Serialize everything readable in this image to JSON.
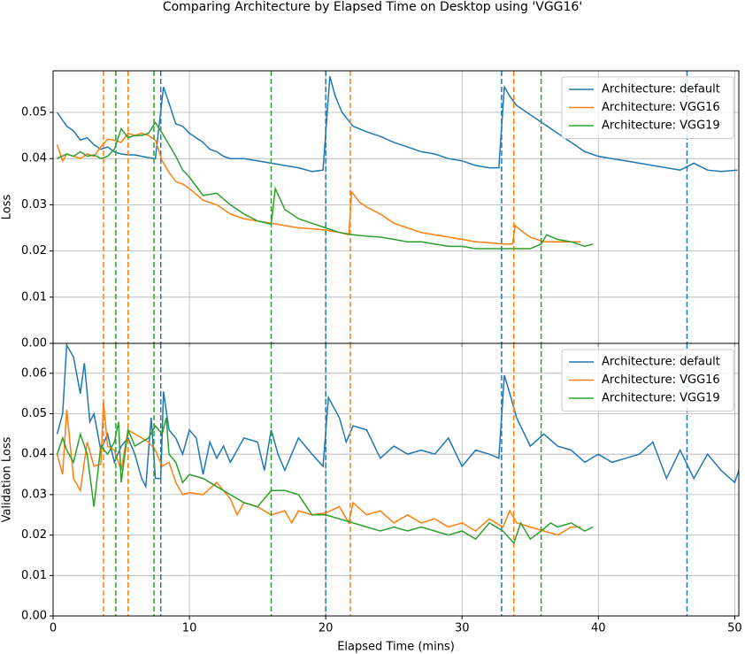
{
  "chart_data": [
    {
      "type": "line",
      "title": "Comparing Architecture by Elapsed Time on Desktop using 'VGG16'",
      "ylabel": "Loss",
      "xlim": [
        0,
        50.3
      ],
      "xticks": [
        0,
        10,
        20,
        30,
        40,
        50
      ],
      "show_xticklabels": false,
      "ylim": [
        0,
        0.059
      ],
      "yticks": [
        {
          "value": 0,
          "label": "0.00"
        },
        {
          "value": 0.01,
          "label": "0.01"
        },
        {
          "value": 0.02,
          "label": "0.02"
        },
        {
          "value": 0.03,
          "label": "0.03"
        },
        {
          "value": 0.04,
          "label": "0.04"
        },
        {
          "value": 0.05,
          "label": "0.05"
        }
      ],
      "grid": true,
      "legend": "upper right",
      "series": [
        {
          "name": "Architecture: default",
          "color": "#1f77b4",
          "vlines": [
            7.9,
            20.0,
            32.9,
            46.5
          ],
          "x": [
            0.3,
            1,
            1.5,
            2,
            2.5,
            3,
            3.5,
            4,
            4.5,
            5,
            5.5,
            6,
            6.5,
            7,
            7.5,
            8.1,
            8.5,
            9,
            9.5,
            10,
            10.5,
            11,
            11.5,
            12,
            12.5,
            13,
            14,
            15,
            16,
            17,
            18,
            19,
            19.8,
            20.3,
            20.7,
            21.2,
            22,
            23,
            24,
            25,
            26,
            27,
            28,
            29,
            30,
            31,
            32,
            32.7,
            33.1,
            33.5,
            34,
            35,
            36,
            37,
            38,
            39,
            40,
            41,
            42,
            43,
            44,
            45,
            46,
            47,
            48,
            49,
            50.2
          ],
          "values": [
            0.05,
            0.047,
            0.046,
            0.044,
            0.0445,
            0.043,
            0.042,
            0.0425,
            0.0415,
            0.041,
            0.0408,
            0.0408,
            0.0405,
            0.0402,
            0.04,
            0.0555,
            0.052,
            0.0475,
            0.047,
            0.0455,
            0.0445,
            0.0435,
            0.042,
            0.0415,
            0.0405,
            0.04,
            0.04,
            0.0395,
            0.039,
            0.0385,
            0.038,
            0.0372,
            0.0375,
            0.0578,
            0.0535,
            0.05,
            0.047,
            0.0458,
            0.0448,
            0.0435,
            0.0425,
            0.0415,
            0.041,
            0.04,
            0.0395,
            0.0385,
            0.038,
            0.038,
            0.0555,
            0.0535,
            0.0515,
            0.0495,
            0.0475,
            0.0455,
            0.0435,
            0.0415,
            0.0405,
            0.04,
            0.0395,
            0.039,
            0.0385,
            0.038,
            0.0375,
            0.039,
            0.0375,
            0.0372,
            0.0375
          ]
        },
        {
          "name": "Architecture: VGG16",
          "color": "#ff7f0e",
          "vlines": [
            3.7,
            5.5,
            21.8,
            33.8
          ],
          "x": [
            0.3,
            0.7,
            1,
            1.5,
            2,
            2.5,
            3,
            3.5,
            4,
            4.5,
            5,
            5.5,
            6,
            6.5,
            7,
            7.5,
            8,
            8.5,
            9,
            9.5,
            10,
            11,
            12,
            13,
            14,
            15,
            16,
            17,
            18,
            19,
            20,
            21,
            21.7,
            21.9,
            22.5,
            23,
            24,
            25,
            26,
            27,
            28,
            29,
            30,
            31,
            32,
            33,
            33.7,
            33.9,
            34.5,
            35,
            36,
            37,
            38,
            38.7
          ],
          "values": [
            0.043,
            0.0395,
            0.041,
            0.0405,
            0.04,
            0.041,
            0.0405,
            0.0425,
            0.0442,
            0.044,
            0.0435,
            0.0455,
            0.045,
            0.0455,
            0.045,
            0.044,
            0.0395,
            0.037,
            0.035,
            0.0345,
            0.0335,
            0.031,
            0.03,
            0.028,
            0.027,
            0.0265,
            0.026,
            0.0255,
            0.025,
            0.0248,
            0.0245,
            0.024,
            0.0235,
            0.0328,
            0.0305,
            0.0295,
            0.028,
            0.026,
            0.025,
            0.024,
            0.0235,
            0.023,
            0.0225,
            0.022,
            0.0218,
            0.0215,
            0.0215,
            0.0255,
            0.024,
            0.023,
            0.022,
            0.022,
            0.022,
            0.022
          ]
        },
        {
          "name": "Architecture: VGG19",
          "color": "#2ca02c",
          "vlines": [
            4.6,
            7.4,
            16.0,
            35.8
          ],
          "x": [
            0.3,
            1,
            1.5,
            2,
            2.5,
            3,
            3.5,
            4,
            4.5,
            5,
            5.5,
            6,
            6.5,
            7,
            7.5,
            8,
            8.5,
            9,
            9.5,
            10,
            10.5,
            11,
            12,
            13,
            14,
            15,
            16,
            16.3,
            17,
            18,
            19,
            20,
            21,
            22,
            23,
            24,
            25,
            26,
            27,
            28,
            29,
            30,
            31,
            32,
            33,
            34,
            35,
            35.8,
            36.2,
            37,
            38,
            39,
            39.6
          ],
          "values": [
            0.04,
            0.041,
            0.0405,
            0.0415,
            0.0405,
            0.0408,
            0.04,
            0.0405,
            0.042,
            0.0465,
            0.0445,
            0.045,
            0.045,
            0.0455,
            0.0478,
            0.0455,
            0.043,
            0.0405,
            0.0375,
            0.036,
            0.034,
            0.032,
            0.0325,
            0.03,
            0.028,
            0.0265,
            0.0258,
            0.0335,
            0.029,
            0.027,
            0.026,
            0.025,
            0.024,
            0.0235,
            0.0232,
            0.023,
            0.0225,
            0.022,
            0.022,
            0.0215,
            0.021,
            0.021,
            0.0205,
            0.0205,
            0.0205,
            0.0205,
            0.0205,
            0.0215,
            0.0235,
            0.0225,
            0.022,
            0.021,
            0.0215
          ]
        }
      ]
    },
    {
      "type": "line",
      "xlabel": "Elapsed Time (mins)",
      "ylabel": "Validation Loss",
      "xlim": [
        0,
        50.3
      ],
      "xticks": [
        0,
        10,
        20,
        30,
        40,
        50
      ],
      "show_xticklabels": true,
      "ylim": [
        0,
        0.0674
      ],
      "yticks": [
        {
          "value": 0,
          "label": "0.00"
        },
        {
          "value": 0.01,
          "label": "0.01"
        },
        {
          "value": 0.02,
          "label": "0.02"
        },
        {
          "value": 0.03,
          "label": "0.03"
        },
        {
          "value": 0.04,
          "label": "0.04"
        },
        {
          "value": 0.05,
          "label": "0.05"
        },
        {
          "value": 0.06,
          "label": "0.06"
        }
      ],
      "grid": true,
      "legend": "upper right",
      "series": [
        {
          "name": "Architecture: default",
          "color": "#1f77b4",
          "vlines": [
            7.9,
            20.0,
            32.9,
            46.5
          ],
          "x": [
            0.3,
            0.7,
            1,
            1.5,
            2,
            2.3,
            2.7,
            3,
            3.5,
            4,
            4.5,
            5,
            5.5,
            6,
            6.5,
            6.8,
            7.2,
            7.5,
            7.9,
            8.1,
            8.5,
            9,
            9.5,
            10,
            10.5,
            11,
            11.5,
            12,
            12.5,
            13,
            14,
            15,
            15.5,
            16,
            16.5,
            17,
            18,
            19,
            19.8,
            20.2,
            21,
            21.5,
            22,
            23,
            24,
            25,
            26,
            27,
            28,
            29,
            30,
            31,
            32,
            32.7,
            33.1,
            33.5,
            34,
            35,
            36,
            37,
            38,
            39,
            40,
            41,
            42,
            43,
            44,
            45,
            46,
            47,
            48,
            49,
            50,
            50.3
          ],
          "values": [
            0.045,
            0.05,
            0.067,
            0.064,
            0.055,
            0.0625,
            0.048,
            0.05,
            0.041,
            0.045,
            0.038,
            0.042,
            0.044,
            0.04,
            0.034,
            0.032,
            0.049,
            0.034,
            0.034,
            0.0555,
            0.046,
            0.044,
            0.04,
            0.046,
            0.044,
            0.035,
            0.043,
            0.039,
            0.042,
            0.038,
            0.044,
            0.043,
            0.036,
            0.046,
            0.04,
            0.036,
            0.044,
            0.04,
            0.037,
            0.054,
            0.049,
            0.043,
            0.047,
            0.046,
            0.039,
            0.042,
            0.04,
            0.041,
            0.04,
            0.044,
            0.037,
            0.041,
            0.04,
            0.039,
            0.0595,
            0.055,
            0.049,
            0.042,
            0.045,
            0.042,
            0.041,
            0.038,
            0.04,
            0.038,
            0.039,
            0.04,
            0.043,
            0.034,
            0.041,
            0.034,
            0.04,
            0.036,
            0.033,
            0.036
          ]
        },
        {
          "name": "Architecture: VGG16",
          "color": "#ff7f0e",
          "vlines": [
            3.7,
            5.5,
            21.8,
            33.8
          ],
          "x": [
            0.3,
            0.7,
            1,
            1.5,
            2,
            2.5,
            3,
            3.5,
            3.7,
            4,
            4.5,
            5,
            5.5,
            6,
            6.5,
            7,
            7.5,
            8,
            8.5,
            9,
            9.5,
            10,
            11,
            12,
            13,
            13.5,
            14,
            15,
            16,
            17,
            17.5,
            18,
            19,
            20,
            21,
            21.7,
            22,
            23,
            24,
            25,
            26,
            27,
            28,
            29,
            30,
            31,
            32,
            33,
            33.5,
            34,
            35,
            36,
            37,
            38,
            38.7
          ],
          "values": [
            0.04,
            0.035,
            0.051,
            0.034,
            0.031,
            0.043,
            0.037,
            0.0375,
            0.053,
            0.042,
            0.041,
            0.036,
            0.046,
            0.045,
            0.044,
            0.043,
            0.041,
            0.037,
            0.038,
            0.033,
            0.03,
            0.0305,
            0.03,
            0.033,
            0.029,
            0.025,
            0.028,
            0.027,
            0.025,
            0.026,
            0.023,
            0.026,
            0.025,
            0.0255,
            0.027,
            0.023,
            0.028,
            0.025,
            0.026,
            0.023,
            0.025,
            0.023,
            0.024,
            0.022,
            0.023,
            0.021,
            0.024,
            0.022,
            0.026,
            0.023,
            0.022,
            0.021,
            0.02,
            0.022,
            0.022
          ]
        },
        {
          "name": "Architecture: VGG19",
          "color": "#2ca02c",
          "vlines": [
            4.6,
            7.4,
            16.0,
            35.8
          ],
          "x": [
            0.3,
            0.7,
            1,
            1.5,
            2,
            2.5,
            3,
            3.5,
            4,
            4.5,
            4.8,
            5,
            5.5,
            6,
            6.5,
            7,
            7.5,
            8,
            8.3,
            8.5,
            9,
            9.5,
            10,
            11,
            12,
            13,
            14,
            15,
            16,
            17,
            18,
            19,
            20,
            21,
            22,
            23,
            24,
            25,
            26,
            27,
            28,
            29,
            30,
            31,
            32,
            33,
            33.8,
            34.3,
            35,
            35.8,
            36.5,
            37,
            38,
            39,
            39.6
          ],
          "values": [
            0.04,
            0.044,
            0.041,
            0.038,
            0.045,
            0.04,
            0.027,
            0.042,
            0.04,
            0.043,
            0.048,
            0.033,
            0.046,
            0.042,
            0.043,
            0.044,
            0.047,
            0.045,
            0.049,
            0.04,
            0.038,
            0.033,
            0.035,
            0.034,
            0.032,
            0.03,
            0.028,
            0.027,
            0.031,
            0.031,
            0.03,
            0.025,
            0.025,
            0.024,
            0.023,
            0.022,
            0.021,
            0.022,
            0.021,
            0.022,
            0.021,
            0.02,
            0.021,
            0.019,
            0.023,
            0.021,
            0.018,
            0.023,
            0.019,
            0.021,
            0.023,
            0.022,
            0.023,
            0.021,
            0.022
          ]
        }
      ]
    }
  ]
}
